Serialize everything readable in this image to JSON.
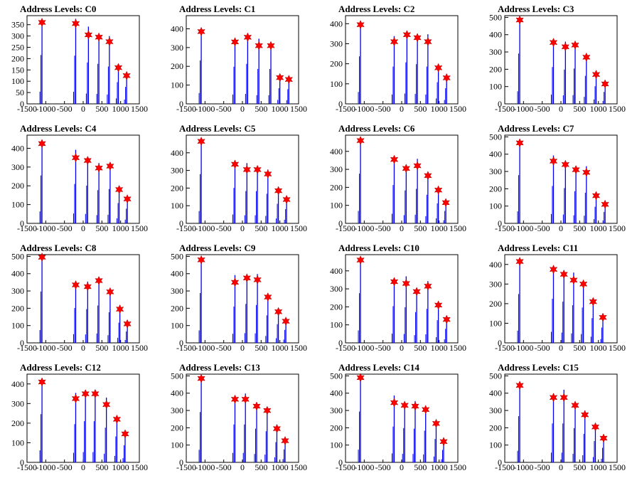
{
  "chart_data": [
    {
      "type": "histogram",
      "title": "Address Levels: C0",
      "xlim": [
        -1500,
        1500
      ],
      "ylim": [
        0,
        390
      ],
      "yticks": [
        0,
        50,
        100,
        150,
        200,
        250,
        300,
        350
      ],
      "xticks": [
        -1500,
        -1000,
        -500,
        0,
        500,
        1000,
        1500
      ],
      "peaks": [
        {
          "x": -1100,
          "y": 360
        },
        {
          "x": -200,
          "y": 355
        },
        {
          "x": 140,
          "y": 305
        },
        {
          "x": 420,
          "y": 295
        },
        {
          "x": 700,
          "y": 275
        },
        {
          "x": 940,
          "y": 160
        },
        {
          "x": 1160,
          "y": 125
        }
      ]
    },
    {
      "type": "histogram",
      "title": "Address Levels: C1",
      "xlim": [
        -1500,
        1500
      ],
      "ylim": [
        0,
        470
      ],
      "yticks": [
        0,
        100,
        200,
        300,
        400
      ],
      "xticks": [
        -1500,
        -1000,
        -500,
        0,
        500,
        1000,
        1500
      ],
      "peaks": [
        {
          "x": -1100,
          "y": 385
        },
        {
          "x": -200,
          "y": 330
        },
        {
          "x": 140,
          "y": 355
        },
        {
          "x": 440,
          "y": 310
        },
        {
          "x": 760,
          "y": 310
        },
        {
          "x": 1000,
          "y": 140
        },
        {
          "x": 1240,
          "y": 130
        }
      ]
    },
    {
      "type": "histogram",
      "title": "Address Levels: C2",
      "xlim": [
        -1500,
        1500
      ],
      "ylim": [
        0,
        440
      ],
      "yticks": [
        0,
        100,
        200,
        300,
        400
      ],
      "xticks": [
        -1500,
        -1000,
        -500,
        0,
        500,
        1000,
        1500
      ],
      "peaks": [
        {
          "x": -1100,
          "y": 395
        },
        {
          "x": -200,
          "y": 310
        },
        {
          "x": 140,
          "y": 345
        },
        {
          "x": 420,
          "y": 330
        },
        {
          "x": 700,
          "y": 310
        },
        {
          "x": 980,
          "y": 180
        },
        {
          "x": 1200,
          "y": 130
        }
      ]
    },
    {
      "type": "histogram",
      "title": "Address Levels: C3",
      "xlim": [
        -1500,
        1500
      ],
      "ylim": [
        0,
        510
      ],
      "yticks": [
        0,
        100,
        200,
        300,
        400,
        500
      ],
      "xticks": [
        -1500,
        -1000,
        -500,
        0,
        500,
        1000,
        1500
      ],
      "peaks": [
        {
          "x": -1100,
          "y": 485
        },
        {
          "x": -200,
          "y": 355
        },
        {
          "x": 120,
          "y": 330
        },
        {
          "x": 380,
          "y": 340
        },
        {
          "x": 680,
          "y": 270
        },
        {
          "x": 940,
          "y": 170
        },
        {
          "x": 1180,
          "y": 115
        }
      ]
    },
    {
      "type": "histogram",
      "title": "Address Levels: C4",
      "xlim": [
        -1500,
        1500
      ],
      "ylim": [
        0,
        470
      ],
      "yticks": [
        0,
        100,
        200,
        300,
        400
      ],
      "xticks": [
        -1500,
        -1000,
        -500,
        0,
        500,
        1000,
        1500
      ],
      "peaks": [
        {
          "x": -1100,
          "y": 425
        },
        {
          "x": -200,
          "y": 350
        },
        {
          "x": 120,
          "y": 335
        },
        {
          "x": 420,
          "y": 295
        },
        {
          "x": 720,
          "y": 305
        },
        {
          "x": 960,
          "y": 180
        },
        {
          "x": 1180,
          "y": 130
        }
      ]
    },
    {
      "type": "histogram",
      "title": "Address Levels: C5",
      "xlim": [
        -1500,
        1500
      ],
      "ylim": [
        0,
        500
      ],
      "yticks": [
        0,
        100,
        200,
        300,
        400
      ],
      "xticks": [
        -1500,
        -1000,
        -500,
        0,
        500,
        1000,
        1500
      ],
      "peaks": [
        {
          "x": -1100,
          "y": 465
        },
        {
          "x": -200,
          "y": 335
        },
        {
          "x": 120,
          "y": 305
        },
        {
          "x": 400,
          "y": 305
        },
        {
          "x": 680,
          "y": 280
        },
        {
          "x": 960,
          "y": 185
        },
        {
          "x": 1180,
          "y": 135
        }
      ]
    },
    {
      "type": "histogram",
      "title": "Address Levels: C6",
      "xlim": [
        -1500,
        1500
      ],
      "ylim": [
        0,
        490
      ],
      "yticks": [
        0,
        100,
        200,
        300,
        400
      ],
      "xticks": [
        -1500,
        -1000,
        -500,
        0,
        500,
        1000,
        1500
      ],
      "peaks": [
        {
          "x": -1100,
          "y": 460
        },
        {
          "x": -200,
          "y": 355
        },
        {
          "x": 120,
          "y": 305
        },
        {
          "x": 420,
          "y": 320
        },
        {
          "x": 700,
          "y": 265
        },
        {
          "x": 980,
          "y": 185
        },
        {
          "x": 1180,
          "y": 115
        }
      ]
    },
    {
      "type": "histogram",
      "title": "Address Levels: C7",
      "xlim": [
        -1500,
        1500
      ],
      "ylim": [
        0,
        510
      ],
      "yticks": [
        0,
        100,
        200,
        300,
        400,
        500
      ],
      "xticks": [
        -1500,
        -1000,
        -500,
        0,
        500,
        1000,
        1500
      ],
      "peaks": [
        {
          "x": -1100,
          "y": 465
        },
        {
          "x": -200,
          "y": 360
        },
        {
          "x": 120,
          "y": 340
        },
        {
          "x": 400,
          "y": 310
        },
        {
          "x": 680,
          "y": 295
        },
        {
          "x": 940,
          "y": 160
        },
        {
          "x": 1180,
          "y": 110
        }
      ]
    },
    {
      "type": "histogram",
      "title": "Address Levels: C8",
      "xlim": [
        -1500,
        1500
      ],
      "ylim": [
        0,
        510
      ],
      "yticks": [
        0,
        100,
        200,
        300,
        400,
        500
      ],
      "xticks": [
        -1500,
        -1000,
        -500,
        0,
        500,
        1000,
        1500
      ],
      "peaks": [
        {
          "x": -1100,
          "y": 495
        },
        {
          "x": -200,
          "y": 335
        },
        {
          "x": 120,
          "y": 325
        },
        {
          "x": 420,
          "y": 360
        },
        {
          "x": 720,
          "y": 295
        },
        {
          "x": 980,
          "y": 195
        },
        {
          "x": 1180,
          "y": 110
        }
      ]
    },
    {
      "type": "histogram",
      "title": "Address Levels: C9",
      "xlim": [
        -1500,
        1500
      ],
      "ylim": [
        0,
        510
      ],
      "yticks": [
        0,
        100,
        200,
        300,
        400,
        500
      ],
      "xticks": [
        -1500,
        -1000,
        -500,
        0,
        500,
        1000,
        1500
      ],
      "peaks": [
        {
          "x": -1100,
          "y": 480
        },
        {
          "x": -200,
          "y": 350
        },
        {
          "x": 120,
          "y": 375
        },
        {
          "x": 400,
          "y": 365
        },
        {
          "x": 680,
          "y": 265
        },
        {
          "x": 960,
          "y": 180
        },
        {
          "x": 1160,
          "y": 125
        }
      ]
    },
    {
      "type": "histogram",
      "title": "Address Levels: C10",
      "xlim": [
        -1500,
        1500
      ],
      "ylim": [
        0,
        490
      ],
      "yticks": [
        0,
        100,
        200,
        300,
        400
      ],
      "xticks": [
        -1500,
        -1000,
        -500,
        0,
        500,
        1000,
        1500
      ],
      "peaks": [
        {
          "x": -1100,
          "y": 460
        },
        {
          "x": -200,
          "y": 340
        },
        {
          "x": 120,
          "y": 330
        },
        {
          "x": 400,
          "y": 285
        },
        {
          "x": 700,
          "y": 315
        },
        {
          "x": 980,
          "y": 210
        },
        {
          "x": 1200,
          "y": 130
        }
      ]
    },
    {
      "type": "histogram",
      "title": "Address Levels: C11",
      "xlim": [
        -1500,
        1500
      ],
      "ylim": [
        0,
        450
      ],
      "yticks": [
        0,
        100,
        200,
        300,
        400
      ],
      "xticks": [
        -1500,
        -1000,
        -500,
        0,
        500,
        1000,
        1500
      ],
      "peaks": [
        {
          "x": -1100,
          "y": 415
        },
        {
          "x": -200,
          "y": 375
        },
        {
          "x": 80,
          "y": 350
        },
        {
          "x": 340,
          "y": 320
        },
        {
          "x": 600,
          "y": 300
        },
        {
          "x": 860,
          "y": 210
        },
        {
          "x": 1120,
          "y": 130
        }
      ]
    },
    {
      "type": "histogram",
      "title": "Address Levels: C12",
      "xlim": [
        -1500,
        1500
      ],
      "ylim": [
        0,
        450
      ],
      "yticks": [
        0,
        100,
        200,
        300,
        400
      ],
      "xticks": [
        -1500,
        -1000,
        -500,
        0,
        500,
        1000,
        1500
      ],
      "peaks": [
        {
          "x": -1100,
          "y": 410
        },
        {
          "x": -200,
          "y": 325
        },
        {
          "x": 60,
          "y": 350
        },
        {
          "x": 320,
          "y": 350
        },
        {
          "x": 620,
          "y": 295
        },
        {
          "x": 900,
          "y": 220
        },
        {
          "x": 1120,
          "y": 145
        }
      ]
    },
    {
      "type": "histogram",
      "title": "Address Levels: C13",
      "xlim": [
        -1500,
        1500
      ],
      "ylim": [
        0,
        510
      ],
      "yticks": [
        0,
        100,
        200,
        300,
        400,
        500
      ],
      "xticks": [
        -1500,
        -1000,
        -500,
        0,
        500,
        1000,
        1500
      ],
      "peaks": [
        {
          "x": -1100,
          "y": 485
        },
        {
          "x": -200,
          "y": 365
        },
        {
          "x": 80,
          "y": 365
        },
        {
          "x": 380,
          "y": 325
        },
        {
          "x": 660,
          "y": 300
        },
        {
          "x": 920,
          "y": 195
        },
        {
          "x": 1140,
          "y": 125
        }
      ]
    },
    {
      "type": "histogram",
      "title": "Address Levels: C14",
      "xlim": [
        -1500,
        1500
      ],
      "ylim": [
        0,
        510
      ],
      "yticks": [
        0,
        100,
        200,
        300,
        400,
        500
      ],
      "xticks": [
        -1500,
        -1000,
        -500,
        0,
        500,
        1000,
        1500
      ],
      "peaks": [
        {
          "x": -1100,
          "y": 490
        },
        {
          "x": -200,
          "y": 345
        },
        {
          "x": 80,
          "y": 330
        },
        {
          "x": 360,
          "y": 325
        },
        {
          "x": 640,
          "y": 305
        },
        {
          "x": 920,
          "y": 225
        },
        {
          "x": 1120,
          "y": 120
        }
      ]
    },
    {
      "type": "histogram",
      "title": "Address Levels: C15",
      "xlim": [
        -1500,
        1500
      ],
      "ylim": [
        0,
        510
      ],
      "yticks": [
        0,
        100,
        200,
        300,
        400,
        500
      ],
      "xticks": [
        -1500,
        -1000,
        -500,
        0,
        500,
        1000,
        1500
      ],
      "peaks": [
        {
          "x": -1100,
          "y": 445
        },
        {
          "x": -200,
          "y": 375
        },
        {
          "x": 80,
          "y": 375
        },
        {
          "x": 380,
          "y": 330
        },
        {
          "x": 640,
          "y": 275
        },
        {
          "x": 920,
          "y": 205
        },
        {
          "x": 1140,
          "y": 140
        }
      ]
    }
  ]
}
